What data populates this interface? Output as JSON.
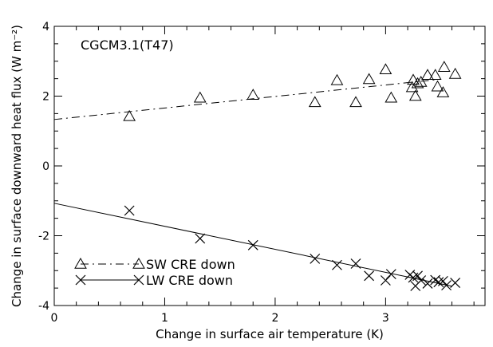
{
  "chart_data": {
    "type": "scatter",
    "xlabel": "Change in surface air temperature (K)",
    "ylabel": "Change in surface downward heat flux (W m⁻²)",
    "xlim": [
      0,
      3.9
    ],
    "ylim": [
      -4,
      4
    ],
    "x_ticks": [
      "0",
      "1",
      "2",
      "3"
    ],
    "y_ticks": [
      "-4",
      "-2",
      "0",
      "2",
      "4"
    ],
    "grid": false,
    "legend_position": "bottom-left",
    "annotations": [
      {
        "text": "CGCM3.1(T47)"
      }
    ],
    "series": [
      {
        "name": "SW CRE down",
        "marker": "triangle",
        "line_style": "dash-dot",
        "fit": {
          "intercept": 1.33,
          "slope": 0.33,
          "x_range": [
            0,
            3.5
          ]
        },
        "points": [
          {
            "x": 0.68,
            "y": 1.42
          },
          {
            "x": 1.32,
            "y": 1.95
          },
          {
            "x": 1.8,
            "y": 2.03
          },
          {
            "x": 2.36,
            "y": 1.82
          },
          {
            "x": 2.56,
            "y": 2.45
          },
          {
            "x": 2.73,
            "y": 1.82
          },
          {
            "x": 2.85,
            "y": 2.48
          },
          {
            "x": 3.0,
            "y": 2.76
          },
          {
            "x": 3.05,
            "y": 1.95
          },
          {
            "x": 3.24,
            "y": 2.25
          },
          {
            "x": 3.25,
            "y": 2.46
          },
          {
            "x": 3.27,
            "y": 2.0
          },
          {
            "x": 3.29,
            "y": 2.36
          },
          {
            "x": 3.32,
            "y": 2.4
          },
          {
            "x": 3.38,
            "y": 2.6
          },
          {
            "x": 3.45,
            "y": 2.6
          },
          {
            "x": 3.47,
            "y": 2.27
          },
          {
            "x": 3.52,
            "y": 2.1
          },
          {
            "x": 3.53,
            "y": 2.83
          },
          {
            "x": 3.63,
            "y": 2.63
          }
        ]
      },
      {
        "name": "LW CRE down",
        "marker": "x",
        "line_style": "solid",
        "fit": {
          "intercept": -1.07,
          "slope": -0.66,
          "x_range": [
            0,
            3.6
          ]
        },
        "points": [
          {
            "x": 0.68,
            "y": -1.28
          },
          {
            "x": 1.32,
            "y": -2.08
          },
          {
            "x": 1.8,
            "y": -2.27
          },
          {
            "x": 2.36,
            "y": -2.66
          },
          {
            "x": 2.56,
            "y": -2.84
          },
          {
            "x": 2.73,
            "y": -2.8
          },
          {
            "x": 2.85,
            "y": -3.15
          },
          {
            "x": 3.0,
            "y": -3.28
          },
          {
            "x": 3.05,
            "y": -3.1
          },
          {
            "x": 3.22,
            "y": -3.12
          },
          {
            "x": 3.25,
            "y": -3.2
          },
          {
            "x": 3.27,
            "y": -3.44
          },
          {
            "x": 3.29,
            "y": -3.15
          },
          {
            "x": 3.32,
            "y": -3.28
          },
          {
            "x": 3.38,
            "y": -3.37
          },
          {
            "x": 3.45,
            "y": -3.27
          },
          {
            "x": 3.48,
            "y": -3.33
          },
          {
            "x": 3.52,
            "y": -3.3
          },
          {
            "x": 3.55,
            "y": -3.42
          },
          {
            "x": 3.63,
            "y": -3.35
          }
        ]
      }
    ]
  }
}
